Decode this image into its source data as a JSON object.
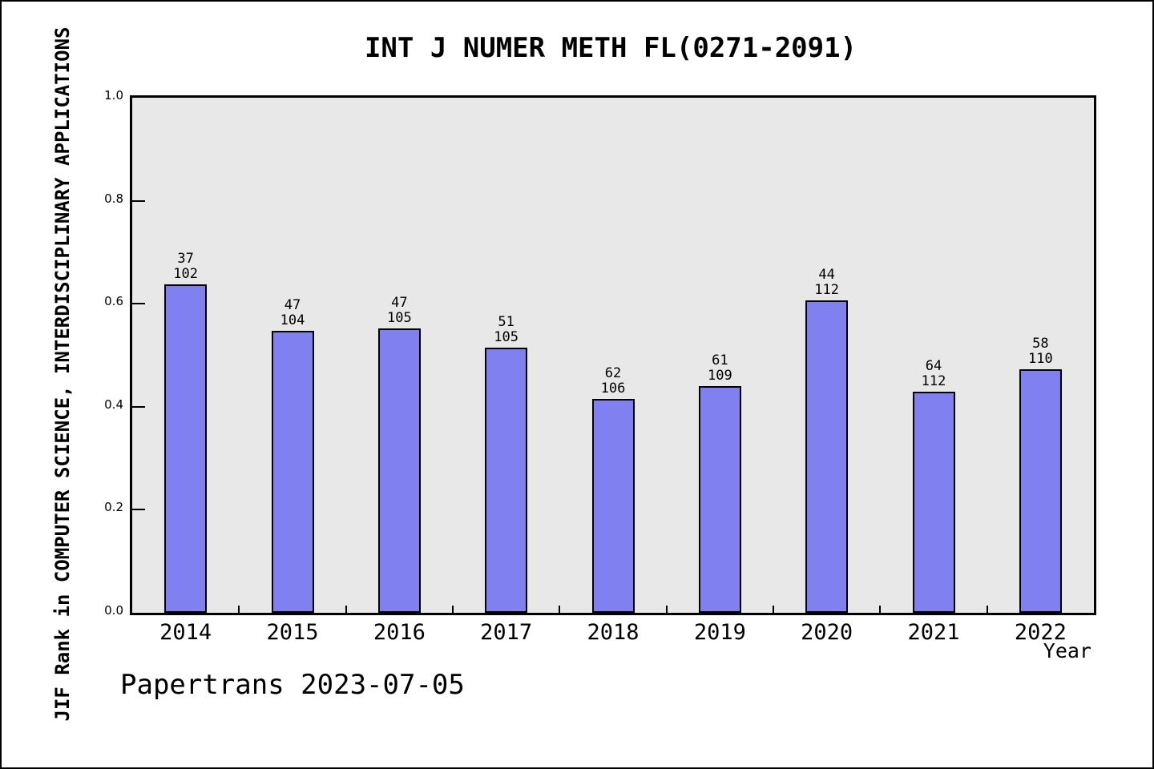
{
  "page": {
    "title": "INT J NUMER METH FL(0271-2091)",
    "xlabel": "Year",
    "ylabel": "JIF Rank in COMPUTER SCIENCE, INTERDISCIPLINARY APPLICATIONS",
    "footer": "Papertrans 2023-07-05"
  },
  "colors": {
    "bar_fill": "#8080f0",
    "bar_outline": "#000000",
    "plot_background": "#e8e8e8",
    "page_background": "#ffffff",
    "text": "#000000"
  },
  "chart_data": {
    "type": "bar",
    "title": "INT J NUMER METH FL(0271-2091)",
    "xlabel": "Year",
    "ylabel": "JIF Rank in COMPUTER SCIENCE, INTERDISCIPLINARY APPLICATIONS",
    "annotation": "Papertrans 2023-07-05",
    "categories": [
      "2014",
      "2015",
      "2016",
      "2017",
      "2018",
      "2019",
      "2020",
      "2021",
      "2022"
    ],
    "bars": [
      {
        "year": "2014",
        "rank": 37,
        "total": 102,
        "value": 0.6373
      },
      {
        "year": "2015",
        "rank": 47,
        "total": 104,
        "value": 0.5481
      },
      {
        "year": "2016",
        "rank": 47,
        "total": 105,
        "value": 0.5524
      },
      {
        "year": "2017",
        "rank": 51,
        "total": 105,
        "value": 0.5143
      },
      {
        "year": "2018",
        "rank": 62,
        "total": 106,
        "value": 0.4151
      },
      {
        "year": "2019",
        "rank": 61,
        "total": 109,
        "value": 0.4404
      },
      {
        "year": "2020",
        "rank": 44,
        "total": 112,
        "value": 0.6071
      },
      {
        "year": "2021",
        "rank": 64,
        "total": 112,
        "value": 0.4286
      },
      {
        "year": "2022",
        "rank": 58,
        "total": 110,
        "value": 0.4727
      }
    ],
    "value_formula": "1 - rank/total",
    "ylim": [
      0.0,
      1.0
    ],
    "yticks": [
      "0.0",
      "0.2",
      "0.4",
      "0.6",
      "0.8",
      "1.0"
    ],
    "grid": false,
    "legend": null
  }
}
